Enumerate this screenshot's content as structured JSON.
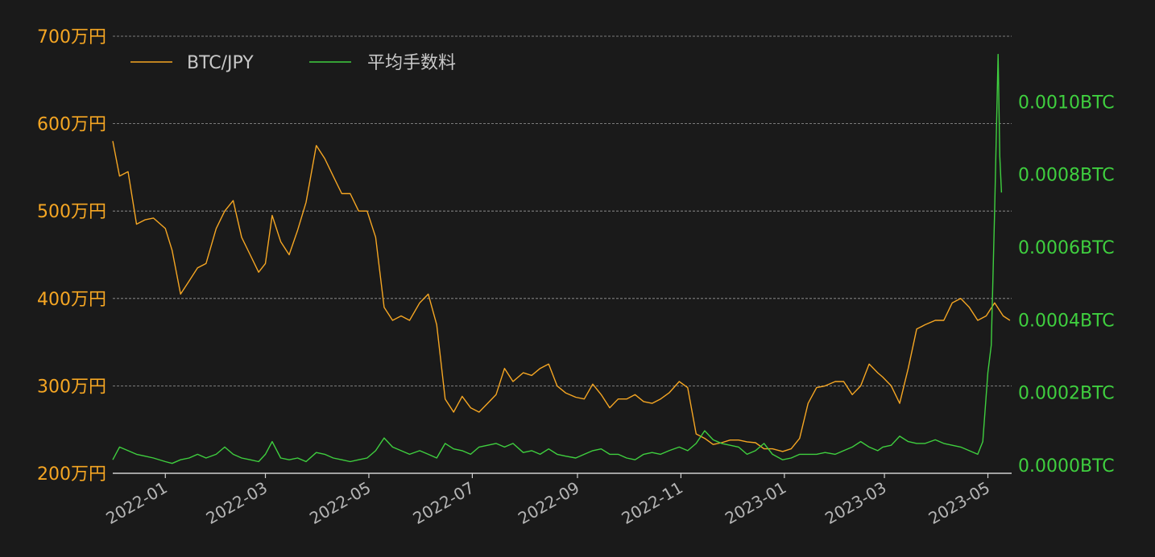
{
  "chart_data": {
    "type": "line",
    "title": "",
    "xlabel": "",
    "ylabel": "",
    "x_ticks": [
      "2022-01",
      "2022-03",
      "2022-05",
      "2022-07",
      "2022-09",
      "2022-11",
      "2023-01",
      "2023-03",
      "2023-05"
    ],
    "y_left": {
      "ticks": [
        200,
        300,
        400,
        500,
        600,
        700
      ],
      "tick_labels": [
        "200万円",
        "300万円",
        "400万円",
        "500万円",
        "600万円",
        "700万円"
      ],
      "range": [
        200,
        700
      ]
    },
    "y_right": {
      "ticks": [
        0.0,
        0.0002,
        0.0004,
        0.0006,
        0.0008,
        0.001
      ],
      "tick_labels": [
        "0.0000BTC",
        "0.0002BTC",
        "0.0004BTC",
        "0.0006BTC",
        "0.0008BTC",
        "0.0010BTC"
      ],
      "range": [
        0.0,
        0.00118
      ]
    },
    "x_range": [
      "2021-12-01",
      "2023-05-15"
    ],
    "grid": "horizontal",
    "legend_position": "top-left",
    "series": [
      {
        "name": "BTC/JPY",
        "axis": "left",
        "color": "#f5a623",
        "points": [
          [
            "2021-12-01",
            580
          ],
          [
            "2021-12-05",
            540
          ],
          [
            "2021-12-10",
            545
          ],
          [
            "2021-12-15",
            485
          ],
          [
            "2021-12-20",
            490
          ],
          [
            "2021-12-25",
            492
          ],
          [
            "2022-01-01",
            480
          ],
          [
            "2022-01-05",
            455
          ],
          [
            "2022-01-10",
            405
          ],
          [
            "2022-01-15",
            420
          ],
          [
            "2022-01-20",
            435
          ],
          [
            "2022-01-25",
            440
          ],
          [
            "2022-01-31",
            480
          ],
          [
            "2022-02-05",
            500
          ],
          [
            "2022-02-10",
            512
          ],
          [
            "2022-02-15",
            470
          ],
          [
            "2022-02-20",
            450
          ],
          [
            "2022-02-25",
            430
          ],
          [
            "2022-03-01",
            440
          ],
          [
            "2022-03-05",
            495
          ],
          [
            "2022-03-10",
            465
          ],
          [
            "2022-03-15",
            450
          ],
          [
            "2022-03-20",
            478
          ],
          [
            "2022-03-25",
            510
          ],
          [
            "2022-03-31",
            575
          ],
          [
            "2022-04-05",
            560
          ],
          [
            "2022-04-10",
            540
          ],
          [
            "2022-04-15",
            520
          ],
          [
            "2022-04-20",
            520
          ],
          [
            "2022-04-25",
            500
          ],
          [
            "2022-04-30",
            500
          ],
          [
            "2022-05-05",
            470
          ],
          [
            "2022-05-10",
            390
          ],
          [
            "2022-05-15",
            375
          ],
          [
            "2022-05-20",
            380
          ],
          [
            "2022-05-25",
            375
          ],
          [
            "2022-05-31",
            395
          ],
          [
            "2022-06-05",
            405
          ],
          [
            "2022-06-10",
            370
          ],
          [
            "2022-06-15",
            285
          ],
          [
            "2022-06-20",
            270
          ],
          [
            "2022-06-25",
            288
          ],
          [
            "2022-06-30",
            275
          ],
          [
            "2022-07-05",
            270
          ],
          [
            "2022-07-10",
            280
          ],
          [
            "2022-07-15",
            290
          ],
          [
            "2022-07-20",
            320
          ],
          [
            "2022-07-25",
            305
          ],
          [
            "2022-07-31",
            315
          ],
          [
            "2022-08-05",
            312
          ],
          [
            "2022-08-10",
            320
          ],
          [
            "2022-08-15",
            325
          ],
          [
            "2022-08-20",
            300
          ],
          [
            "2022-08-25",
            292
          ],
          [
            "2022-08-31",
            287
          ],
          [
            "2022-09-05",
            285
          ],
          [
            "2022-09-10",
            302
          ],
          [
            "2022-09-15",
            290
          ],
          [
            "2022-09-20",
            275
          ],
          [
            "2022-09-25",
            285
          ],
          [
            "2022-09-30",
            285
          ],
          [
            "2022-10-05",
            290
          ],
          [
            "2022-10-10",
            282
          ],
          [
            "2022-10-15",
            280
          ],
          [
            "2022-10-20",
            285
          ],
          [
            "2022-10-25",
            292
          ],
          [
            "2022-10-31",
            305
          ],
          [
            "2022-11-05",
            298
          ],
          [
            "2022-11-10",
            245
          ],
          [
            "2022-11-15",
            240
          ],
          [
            "2022-11-20",
            233
          ],
          [
            "2022-11-25",
            235
          ],
          [
            "2022-11-30",
            238
          ],
          [
            "2022-12-05",
            238
          ],
          [
            "2022-12-10",
            236
          ],
          [
            "2022-12-15",
            235
          ],
          [
            "2022-12-20",
            228
          ],
          [
            "2022-12-25",
            228
          ],
          [
            "2022-12-31",
            225
          ],
          [
            "2023-01-05",
            228
          ],
          [
            "2023-01-10",
            240
          ],
          [
            "2023-01-15",
            280
          ],
          [
            "2023-01-20",
            298
          ],
          [
            "2023-01-25",
            300
          ],
          [
            "2023-01-31",
            305
          ],
          [
            "2023-02-05",
            305
          ],
          [
            "2023-02-10",
            290
          ],
          [
            "2023-02-15",
            300
          ],
          [
            "2023-02-20",
            325
          ],
          [
            "2023-02-25",
            315
          ],
          [
            "2023-02-28",
            310
          ],
          [
            "2023-03-05",
            300
          ],
          [
            "2023-03-10",
            280
          ],
          [
            "2023-03-15",
            320
          ],
          [
            "2023-03-20",
            365
          ],
          [
            "2023-03-25",
            370
          ],
          [
            "2023-03-31",
            375
          ],
          [
            "2023-04-05",
            375
          ],
          [
            "2023-04-10",
            395
          ],
          [
            "2023-04-15",
            400
          ],
          [
            "2023-04-20",
            390
          ],
          [
            "2023-04-25",
            375
          ],
          [
            "2023-04-30",
            380
          ],
          [
            "2023-05-05",
            395
          ],
          [
            "2023-05-10",
            380
          ],
          [
            "2023-05-14",
            375
          ]
        ]
      },
      {
        "name": "平均手数料",
        "axis": "right",
        "color": "#3fcf3f",
        "points": [
          [
            "2021-12-01",
            1.5e-05
          ],
          [
            "2021-12-05",
            5e-05
          ],
          [
            "2021-12-10",
            4e-05
          ],
          [
            "2021-12-15",
            3e-05
          ],
          [
            "2021-12-20",
            2.5e-05
          ],
          [
            "2021-12-25",
            2e-05
          ],
          [
            "2022-01-01",
            1e-05
          ],
          [
            "2022-01-05",
            5e-06
          ],
          [
            "2022-01-10",
            1.5e-05
          ],
          [
            "2022-01-15",
            2e-05
          ],
          [
            "2022-01-20",
            3e-05
          ],
          [
            "2022-01-25",
            2e-05
          ],
          [
            "2022-01-31",
            3e-05
          ],
          [
            "2022-02-05",
            5e-05
          ],
          [
            "2022-02-10",
            3e-05
          ],
          [
            "2022-02-15",
            2e-05
          ],
          [
            "2022-02-20",
            1.5e-05
          ],
          [
            "2022-02-25",
            1e-05
          ],
          [
            "2022-03-01",
            3e-05
          ],
          [
            "2022-03-05",
            6.5e-05
          ],
          [
            "2022-03-10",
            2e-05
          ],
          [
            "2022-03-15",
            1.5e-05
          ],
          [
            "2022-03-20",
            2e-05
          ],
          [
            "2022-03-25",
            1e-05
          ],
          [
            "2022-03-31",
            3.5e-05
          ],
          [
            "2022-04-05",
            3e-05
          ],
          [
            "2022-04-10",
            2e-05
          ],
          [
            "2022-04-15",
            1.5e-05
          ],
          [
            "2022-04-20",
            1e-05
          ],
          [
            "2022-04-25",
            1.5e-05
          ],
          [
            "2022-04-30",
            2e-05
          ],
          [
            "2022-05-05",
            4e-05
          ],
          [
            "2022-05-10",
            7.5e-05
          ],
          [
            "2022-05-15",
            5e-05
          ],
          [
            "2022-05-20",
            4e-05
          ],
          [
            "2022-05-25",
            3e-05
          ],
          [
            "2022-05-31",
            4e-05
          ],
          [
            "2022-06-05",
            3e-05
          ],
          [
            "2022-06-10",
            2e-05
          ],
          [
            "2022-06-15",
            6e-05
          ],
          [
            "2022-06-20",
            4.5e-05
          ],
          [
            "2022-06-25",
            4e-05
          ],
          [
            "2022-06-30",
            3e-05
          ],
          [
            "2022-07-05",
            5e-05
          ],
          [
            "2022-07-10",
            5.5e-05
          ],
          [
            "2022-07-15",
            6e-05
          ],
          [
            "2022-07-20",
            5e-05
          ],
          [
            "2022-07-25",
            6e-05
          ],
          [
            "2022-07-31",
            3.5e-05
          ],
          [
            "2022-08-05",
            4e-05
          ],
          [
            "2022-08-10",
            3e-05
          ],
          [
            "2022-08-15",
            4.5e-05
          ],
          [
            "2022-08-20",
            3e-05
          ],
          [
            "2022-08-25",
            2.5e-05
          ],
          [
            "2022-08-31",
            2e-05
          ],
          [
            "2022-09-05",
            3e-05
          ],
          [
            "2022-09-10",
            4e-05
          ],
          [
            "2022-09-15",
            4.5e-05
          ],
          [
            "2022-09-20",
            3e-05
          ],
          [
            "2022-09-25",
            3e-05
          ],
          [
            "2022-09-30",
            2e-05
          ],
          [
            "2022-10-05",
            1.5e-05
          ],
          [
            "2022-10-10",
            3e-05
          ],
          [
            "2022-10-15",
            3.5e-05
          ],
          [
            "2022-10-20",
            3e-05
          ],
          [
            "2022-10-25",
            4e-05
          ],
          [
            "2022-10-31",
            5e-05
          ],
          [
            "2022-11-05",
            4e-05
          ],
          [
            "2022-11-10",
            6e-05
          ],
          [
            "2022-11-15",
            9.5e-05
          ],
          [
            "2022-11-20",
            7e-05
          ],
          [
            "2022-11-25",
            6e-05
          ],
          [
            "2022-11-30",
            5.5e-05
          ],
          [
            "2022-12-05",
            5e-05
          ],
          [
            "2022-12-10",
            3e-05
          ],
          [
            "2022-12-15",
            4e-05
          ],
          [
            "2022-12-20",
            6e-05
          ],
          [
            "2022-12-25",
            3e-05
          ],
          [
            "2022-12-31",
            1.5e-05
          ],
          [
            "2023-01-05",
            2e-05
          ],
          [
            "2023-01-10",
            3e-05
          ],
          [
            "2023-01-15",
            3e-05
          ],
          [
            "2023-01-20",
            3e-05
          ],
          [
            "2023-01-25",
            3.5e-05
          ],
          [
            "2023-01-31",
            3e-05
          ],
          [
            "2023-02-05",
            4e-05
          ],
          [
            "2023-02-10",
            5e-05
          ],
          [
            "2023-02-15",
            6.5e-05
          ],
          [
            "2023-02-20",
            5e-05
          ],
          [
            "2023-02-25",
            4e-05
          ],
          [
            "2023-02-28",
            5e-05
          ],
          [
            "2023-03-05",
            5.5e-05
          ],
          [
            "2023-03-10",
            8e-05
          ],
          [
            "2023-03-15",
            6.5e-05
          ],
          [
            "2023-03-20",
            6e-05
          ],
          [
            "2023-03-25",
            6e-05
          ],
          [
            "2023-03-31",
            7e-05
          ],
          [
            "2023-04-05",
            6e-05
          ],
          [
            "2023-04-10",
            5.5e-05
          ],
          [
            "2023-04-15",
            5e-05
          ],
          [
            "2023-04-20",
            4e-05
          ],
          [
            "2023-04-25",
            3e-05
          ],
          [
            "2023-04-28",
            6.5e-05
          ],
          [
            "2023-05-01",
            0.000255
          ],
          [
            "2023-05-03",
            0.00033
          ],
          [
            "2023-05-05",
            0.0007
          ],
          [
            "2023-05-07",
            0.00113
          ],
          [
            "2023-05-08",
            0.00085
          ],
          [
            "2023-05-09",
            0.00075
          ]
        ]
      }
    ]
  }
}
